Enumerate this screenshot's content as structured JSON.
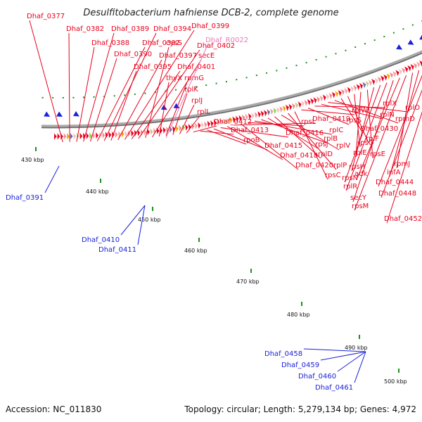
{
  "title": "Desulfitobacterium hafniense DCB-2, complete genome",
  "footer": {
    "accession": "Accession: NC_011830",
    "topology": "Topology: circular; Length: 5,279,134 bp; Genes: 4,972"
  },
  "ticks": [
    "430 kbp",
    "440 kbp",
    "450 kbp",
    "460 kbp",
    "470 kbp",
    "480 kbp",
    "490 kbp",
    "500 kbp"
  ],
  "labels_red": [
    "Dhaf_0377",
    "Dhaf_0382",
    "Dhaf_0388",
    "Dhaf_0389",
    "Dhaf_0390",
    "Dhaf_0392",
    "Dhaf_0394",
    "Dhaf_0395",
    "Dhaf_0397",
    "Dhaf_0399",
    "Dhaf_0401",
    "Dhaf_0402",
    "cysS",
    "secE",
    "thyX",
    "rpmG",
    "rplK",
    "rplJ",
    "rplL",
    "Dhaf_0412",
    "Dhaf_0413",
    "rpoB",
    "Dhaf_0415",
    "Dhaf_0416",
    "Dhaf_0418",
    "Dhaf_0419",
    "Dhaf_0420",
    "rpsL",
    "rplC",
    "rplB",
    "rpsJ",
    "rplD",
    "rplV",
    "rplP",
    "rpsC",
    "rplW",
    "rpsS",
    "rplX",
    "rplN",
    "rplO",
    "rpmD",
    "Dhaf_0430",
    "rplF",
    "rpsQ",
    "rplE",
    "rpsE",
    "rpsH",
    "rpsN",
    "rplR",
    "secY",
    "adk",
    "rpsM",
    "rpmJ",
    "infA",
    "Dhaf_0444",
    "Dhaf_0448",
    "Dhaf_0452"
  ],
  "labels_blue": [
    "Dhaf_0391",
    "Dhaf_0410",
    "Dhaf_0411",
    "Dhaf_0458",
    "Dhaf_0459",
    "Dhaf_0460",
    "Dhaf_0461"
  ],
  "labels_pink": [
    "Dhaf_R0022"
  ],
  "colors": {
    "forward_gene": "#e8001c",
    "reverse_gene": "#1a22d8",
    "backbone": "#8a8a8a",
    "tick": "#1f8f1f"
  }
}
